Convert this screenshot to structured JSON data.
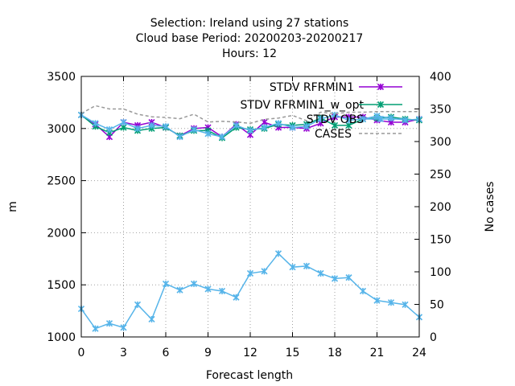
{
  "chart_data": {
    "type": "line",
    "title_lines": [
      "Selection: Ireland using    27 stations",
      "Cloud base   Period: 20200203-20200217",
      "Hours:  12"
    ],
    "xlabel": "Forecast length",
    "ylabel": "m",
    "y2label": "No cases",
    "xlim": [
      0,
      24
    ],
    "ylim": [
      1000,
      3500
    ],
    "y2lim": [
      0,
      400
    ],
    "xticks": [
      0,
      3,
      6,
      9,
      12,
      15,
      18,
      21,
      24
    ],
    "yticks": [
      1000,
      1500,
      2000,
      2500,
      3000,
      3500
    ],
    "y2ticks": [
      0,
      50,
      100,
      150,
      200,
      250,
      300,
      350,
      400
    ],
    "grid": true,
    "legend_position": "top-right",
    "x": [
      0,
      1,
      2,
      3,
      4,
      5,
      6,
      7,
      8,
      9,
      10,
      11,
      12,
      13,
      14,
      15,
      16,
      17,
      18,
      19,
      20,
      21,
      22,
      23,
      24
    ],
    "series": [
      {
        "name": "STDV RFRMIN1",
        "axis": "y1",
        "color": "#9400d3",
        "style": "solid",
        "marker": "x",
        "values": [
          3130,
          3040,
          2920,
          3060,
          3030,
          3060,
          3010,
          2930,
          3000,
          3010,
          2920,
          3040,
          2940,
          3060,
          3010,
          3010,
          3000,
          3050,
          3110,
          3110,
          3110,
          3080,
          3060,
          3060,
          3090
        ]
      },
      {
        "name": "STDV RFRMIN1_w_opt",
        "axis": "y1",
        "color": "#009e73",
        "style": "solid",
        "marker": "x",
        "values": [
          3130,
          3020,
          2960,
          3010,
          2980,
          3000,
          3010,
          2930,
          2980,
          2980,
          2910,
          3010,
          2990,
          3000,
          3040,
          3030,
          3040,
          3100,
          3030,
          3030,
          3090,
          3100,
          3110,
          3090,
          3080
        ]
      },
      {
        "name": "STDV OBS",
        "axis": "y1",
        "color": "#56b4e9",
        "style": "solid",
        "marker": "x",
        "values": [
          3130,
          3050,
          2990,
          3060,
          3000,
          3030,
          3020,
          2920,
          2990,
          2950,
          2920,
          3030,
          2980,
          3010,
          3050,
          3010,
          3020,
          3090,
          3130,
          3080,
          3090,
          3120,
          3100,
          3080,
          3090
        ]
      },
      {
        "name": "CASES",
        "axis": "y2",
        "color": "#999999",
        "style": "dashed",
        "marker": "none",
        "values": [
          343,
          355,
          350,
          350,
          342,
          338,
          337,
          335,
          342,
          330,
          331,
          330,
          328,
          334,
          336,
          340,
          332,
          345,
          343,
          345,
          345,
          346,
          346,
          346,
          346
        ]
      },
      {
        "name": "",
        "axis": "y1",
        "color": "#56b4e9",
        "style": "solid",
        "marker": "x",
        "values": [
          1270,
          1080,
          1130,
          1090,
          1310,
          1170,
          1510,
          1450,
          1510,
          1460,
          1440,
          1380,
          1610,
          1630,
          1800,
          1670,
          1680,
          1610,
          1560,
          1570,
          1440,
          1350,
          1330,
          1310,
          1190
        ]
      }
    ],
    "legend": [
      {
        "label": "STDV RFRMIN1",
        "color": "#9400d3",
        "style": "solid"
      },
      {
        "label": "STDV RFRMIN1_w_opt",
        "color": "#009e73",
        "style": "solid"
      },
      {
        "label": "STDV OBS",
        "color": "#56b4e9",
        "style": "solid"
      },
      {
        "label": "CASES",
        "color": "#999999",
        "style": "dashed"
      }
    ]
  }
}
